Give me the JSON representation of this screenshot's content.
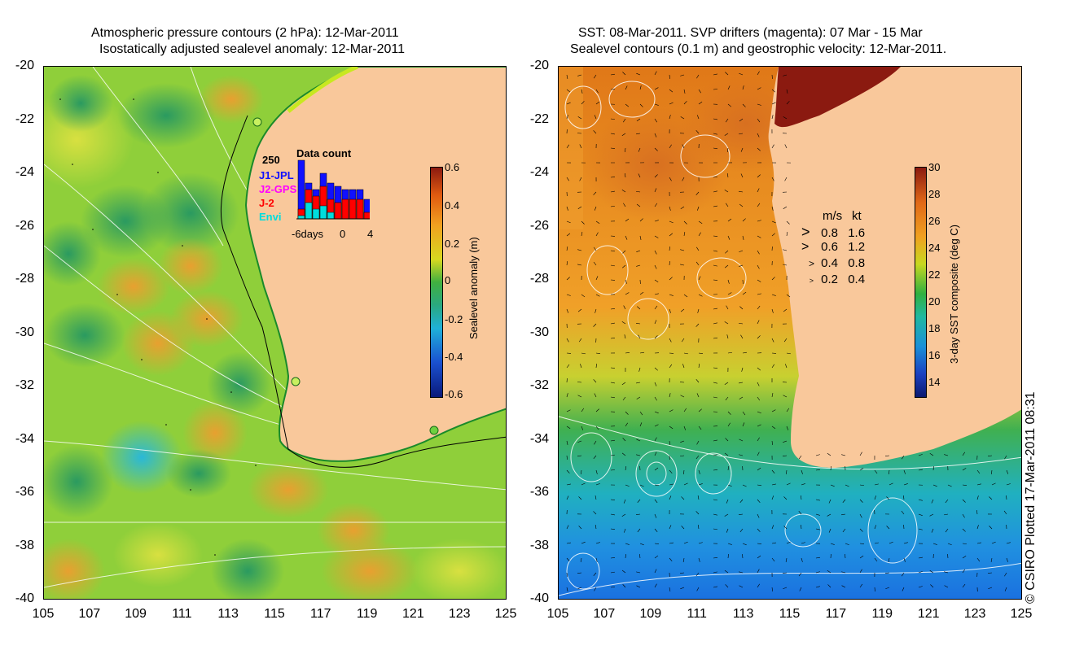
{
  "left_panel": {
    "title_line1": "Atmospheric pressure contours (2 hPa): 12-Mar-2011",
    "title_line2": "Isostatically adjusted sealevel anomaly: 12-Mar-2011",
    "colorbar": {
      "label": "Sealevel anomaly (m)",
      "ticks": [
        "0.6",
        "0.4",
        "0.2",
        "0",
        "-0.2",
        "-0.4",
        "-0.6"
      ],
      "colors": [
        "#8b1a10",
        "#f08a20",
        "#c4e020",
        "#2aa84a",
        "#1fb0d8",
        "#1a4fd0",
        "#0a1a7a"
      ]
    },
    "inset": {
      "title": "Data count",
      "ymax": "250",
      "series": [
        {
          "name": "J1-JPL",
          "color": "#1010ff"
        },
        {
          "name": "J2-GPS",
          "color": "#ff00ff"
        },
        {
          "name": "J-2",
          "color": "#ff0000"
        },
        {
          "name": "Envi",
          "color": "#00dddd"
        }
      ],
      "xticks": [
        "-6days",
        "0",
        "4"
      ],
      "bars_blue": [
        0.9,
        0.55,
        0.45,
        0.7,
        0.55,
        0.5,
        0.45,
        0.45,
        0.45,
        0.3
      ],
      "bars_red": [
        0.15,
        0.45,
        0.35,
        0.5,
        0.3,
        0.25,
        0.3,
        0.3,
        0.3,
        0.1
      ],
      "bars_cyan": [
        0.05,
        0.25,
        0.15,
        0.2,
        0.1,
        0.0,
        0.0,
        0.0,
        0.0,
        0.0
      ]
    }
  },
  "right_panel": {
    "title_line1": "SST: 08-Mar-2011. SVP drifters (magenta): 07 Mar - 15 Mar",
    "title_line2": "Sealevel contours (0.1 m) and geostrophic velocity: 12-Mar-2011.",
    "colorbar": {
      "label": "3-day SST composite (deg C)",
      "ticks": [
        "30",
        "28",
        "26",
        "24",
        "22",
        "20",
        "18",
        "16",
        "14"
      ],
      "colors": [
        "#8b1a10",
        "#e06818",
        "#f0a020",
        "#c8d820",
        "#30b040",
        "#20b8a0",
        "#1a90d8",
        "#1a40c0",
        "#0a1a70"
      ]
    },
    "velocity_legend": {
      "header_ms": "m/s",
      "header_kt": "kt",
      "rows": [
        {
          "ms": "0.8",
          "kt": "1.6",
          "arrow": ">"
        },
        {
          "ms": "0.6",
          "kt": "1.2",
          "arrow": ">"
        },
        {
          "ms": "0.4",
          "kt": "0.8",
          "arrow": ">"
        },
        {
          "ms": "0.2",
          "kt": "0.4",
          "arrow": ">"
        }
      ]
    }
  },
  "axes": {
    "y_ticks": [
      "-20",
      "-22",
      "-24",
      "-26",
      "-28",
      "-30",
      "-32",
      "-34",
      "-36",
      "-38",
      "-40"
    ],
    "x_ticks": [
      "105",
      "107",
      "109",
      "111",
      "113",
      "115",
      "117",
      "119",
      "121",
      "123",
      "125"
    ]
  },
  "copyright": "© CSIRO Plotted 17-Mar-2011 08:31",
  "land_color": "#f9c89b"
}
